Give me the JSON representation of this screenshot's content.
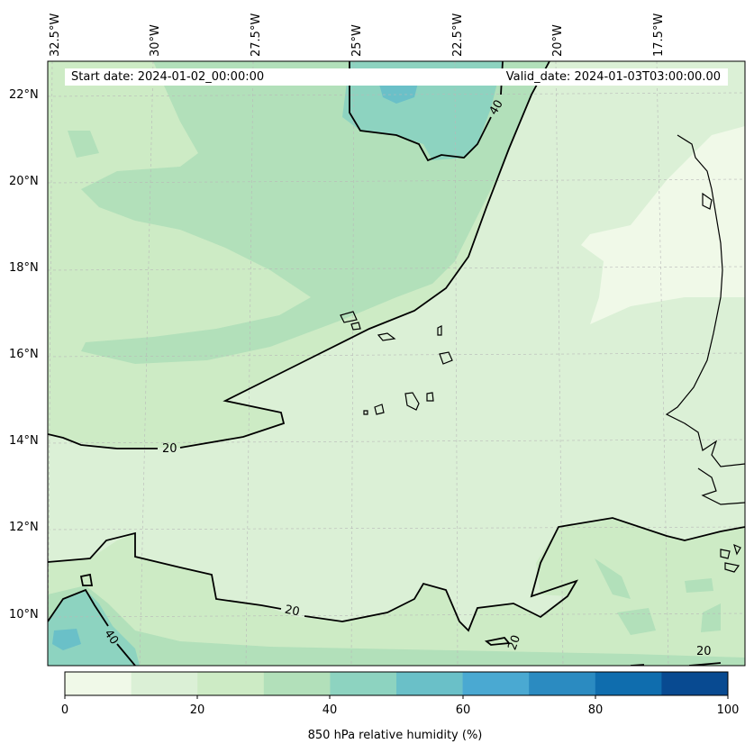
{
  "map": {
    "start_date": "Start date: 2024-01-02_00:00:00",
    "valid_date": "Valid_date: 2024-01-03T03:00:00.00",
    "lon_labels": [
      "32.5°W",
      "30°W",
      "27.5°W",
      "25°W",
      "22.5°W",
      "20°W",
      "17.5°W"
    ],
    "lat_labels": [
      "22°N",
      "20°N",
      "18°N",
      "16°N",
      "14°N",
      "12°N",
      "10°N"
    ],
    "contour_labels": [
      "40",
      "20",
      "20",
      "40",
      "20",
      "20"
    ],
    "colors": {
      "c0_10": "#f0f9e8",
      "c10_20": "#dbf0d6",
      "c20_30": "#cdebc5",
      "c30_40": "#b2e0ba",
      "c40_50": "#8dd3c0",
      "c50_60": "#6ac0c8",
      "c60_70": "#4aa9d2",
      "c70_80": "#2b8bc1",
      "c80_90": "#0f6dae",
      "c90_100": "#084a91"
    }
  },
  "colorbar": {
    "ticks": [
      "0",
      "20",
      "40",
      "60",
      "80",
      "100"
    ],
    "label": "850 hPa relative humidity (%)"
  }
}
